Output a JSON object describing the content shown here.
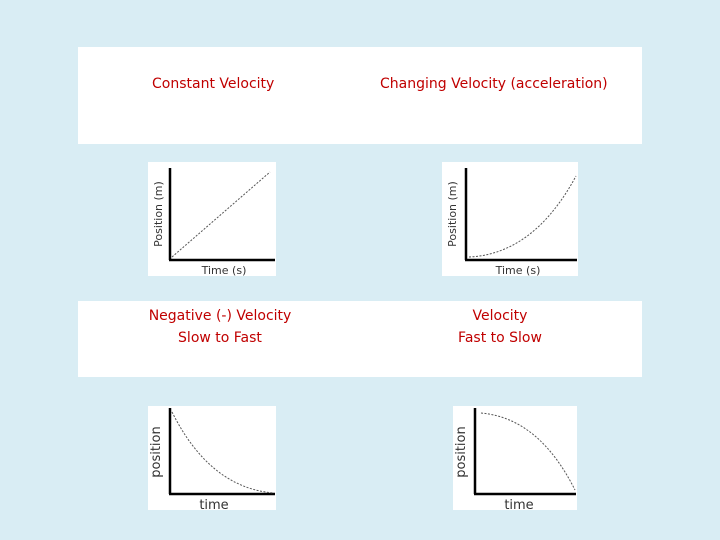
{
  "headings": {
    "constant": "Constant Velocity",
    "changing": "Changing Velocity (acceleration)",
    "negative_line1": "Negative (-) Velocity",
    "negative_line2": "Slow to Fast",
    "velocity_line1": "Velocity",
    "velocity_line2": "Fast to Slow"
  },
  "graphs": {
    "g1": {
      "xlabel": "Time (s)",
      "ylabel": "Position (m)"
    },
    "g2": {
      "xlabel": "Time (s)",
      "ylabel": "Position (m)"
    },
    "g3": {
      "xlabel": "time",
      "ylabel": "position"
    },
    "g4": {
      "xlabel": "time",
      "ylabel": "position"
    }
  },
  "colors": {
    "background": "#d9edf4",
    "heading": "#c00000",
    "axis": "#000000"
  }
}
